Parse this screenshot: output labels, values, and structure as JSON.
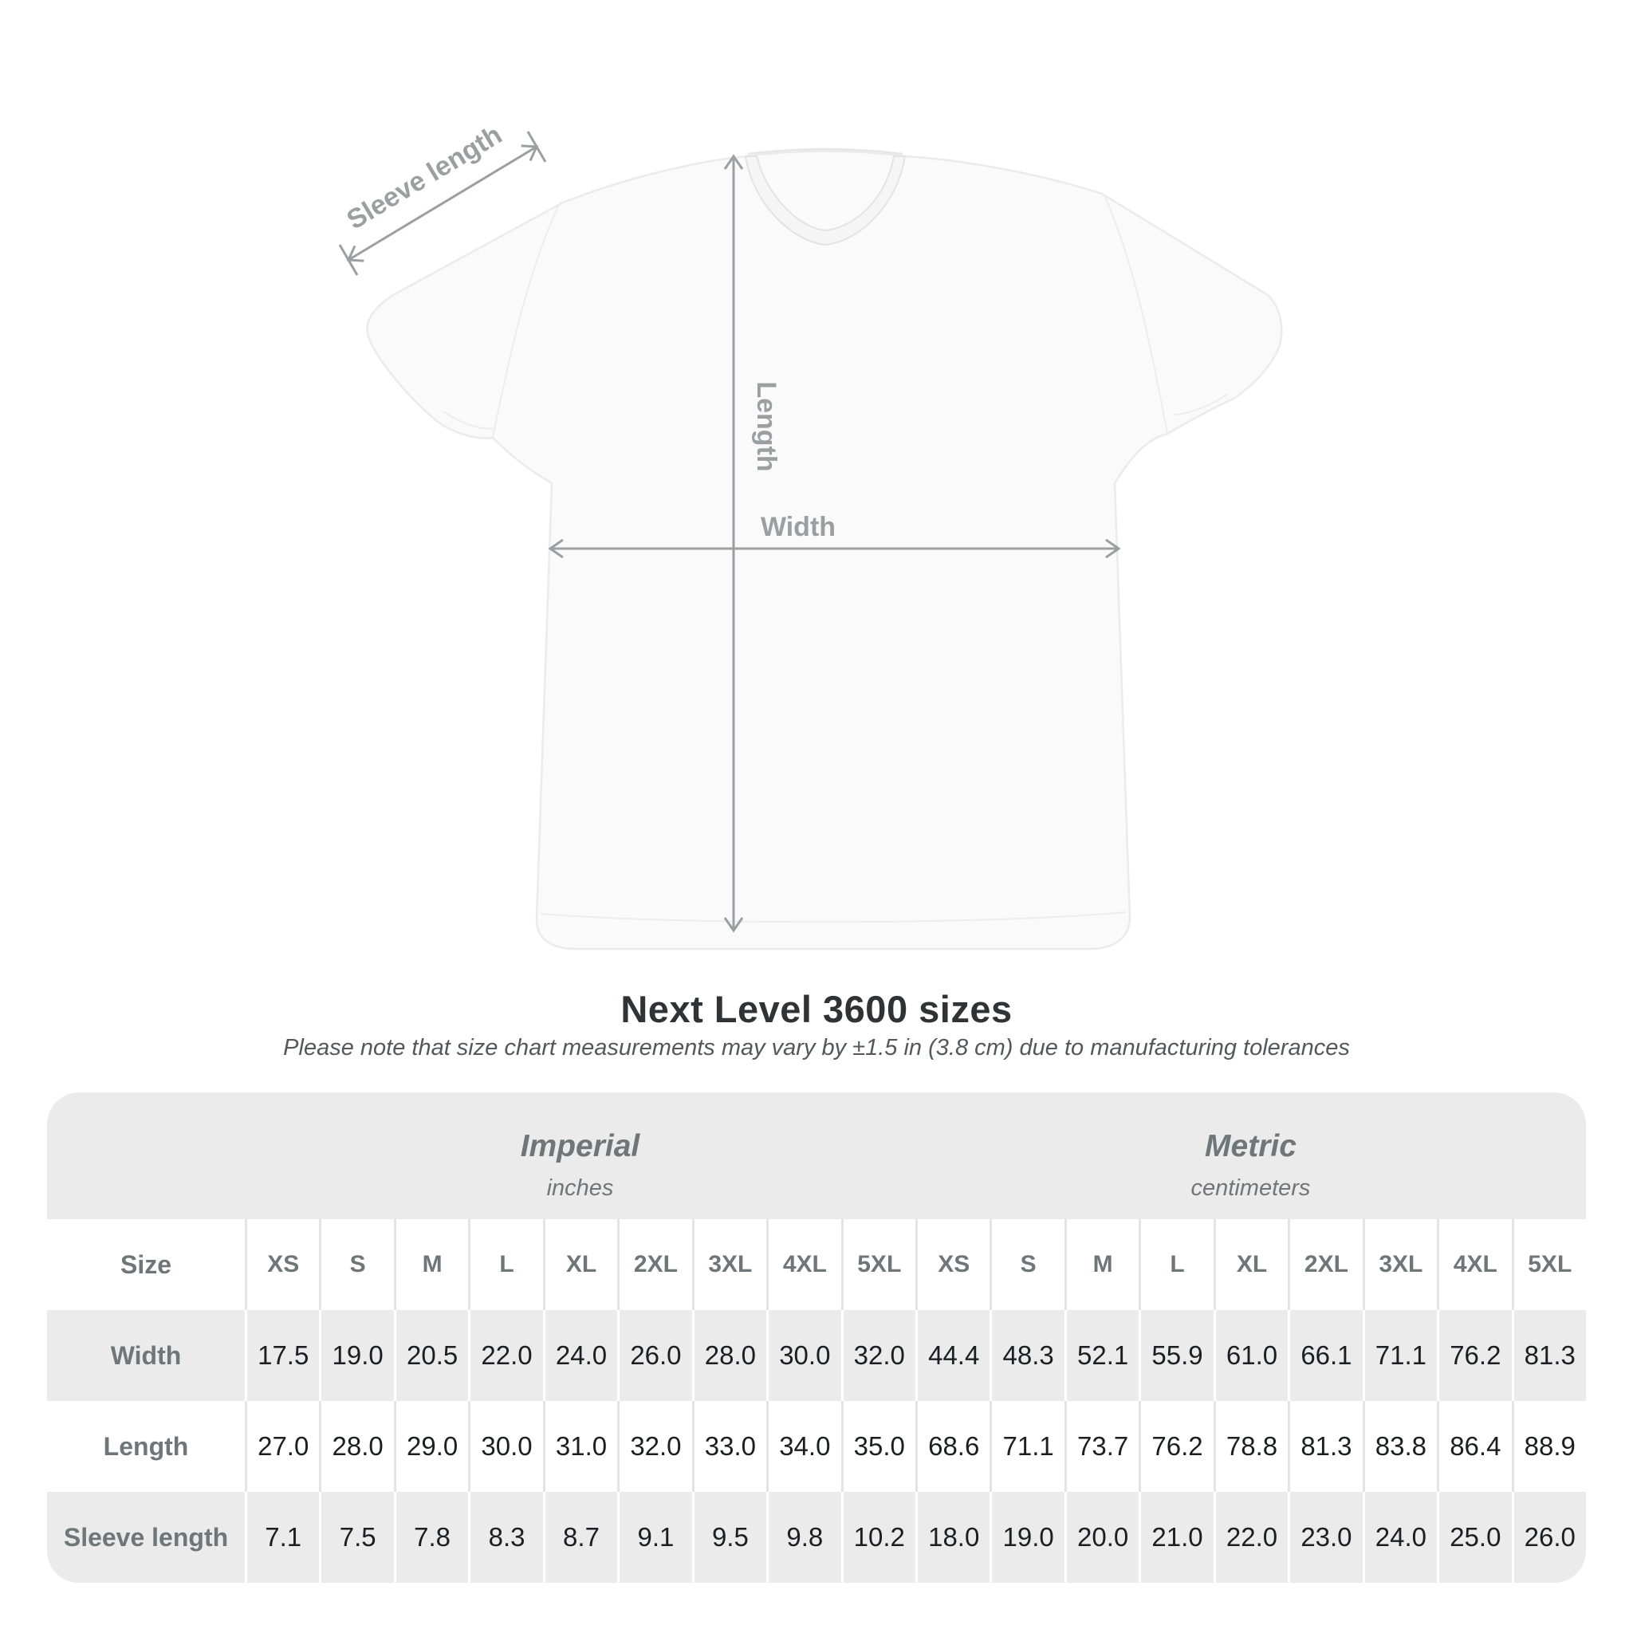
{
  "page": {
    "background": "#ffffff"
  },
  "diagram": {
    "sleeve_label": "Sleeve length",
    "length_label": "Length",
    "width_label": "Width",
    "annotation_color": "#9aa0a2",
    "shirt_fill": "#fafafa",
    "shirt_edge": "#ebebec"
  },
  "heading": {
    "title": "Next Level 3600 sizes",
    "note": "Please note that size chart measurements may vary by ±1.5 in (3.8 cm) due to manufacturing tolerances"
  },
  "table": {
    "row_header_label": "Size",
    "sections": [
      {
        "name": "Imperial",
        "unit": "inches"
      },
      {
        "name": "Metric",
        "unit": "centimeters"
      }
    ],
    "sizes": [
      "XS",
      "S",
      "M",
      "L",
      "XL",
      "2XL",
      "3XL",
      "4XL",
      "5XL"
    ],
    "rows": [
      {
        "label": "Width",
        "imperial": [
          "17.5",
          "19.0",
          "20.5",
          "22.0",
          "24.0",
          "26.0",
          "28.0",
          "30.0",
          "32.0"
        ],
        "metric": [
          "44.4",
          "48.3",
          "52.1",
          "55.9",
          "61.0",
          "66.1",
          "71.1",
          "76.2",
          "81.3"
        ]
      },
      {
        "label": "Length",
        "imperial": [
          "27.0",
          "28.0",
          "29.0",
          "30.0",
          "31.0",
          "32.0",
          "33.0",
          "34.0",
          "35.0"
        ],
        "metric": [
          "68.6",
          "71.1",
          "73.7",
          "76.2",
          "78.8",
          "81.3",
          "83.8",
          "86.4",
          "88.9"
        ]
      },
      {
        "label": "Sleeve length",
        "imperial": [
          "7.1",
          "7.5",
          "7.8",
          "8.3",
          "8.7",
          "9.1",
          "9.5",
          "9.8",
          "10.2"
        ],
        "metric": [
          "18.0",
          "19.0",
          "20.0",
          "21.0",
          "22.0",
          "23.0",
          "24.0",
          "25.0",
          "26.0"
        ]
      }
    ],
    "colors": {
      "band_bg": "#ebebec",
      "gray_row_bg": "#ebebec",
      "white_row_bg": "#ffffff",
      "separator_on_white": "#e4e4e5",
      "separator_on_gray": "#ffffff",
      "header_text": "#6e767a",
      "value_text": "#1c1e1f"
    }
  },
  "chart_data": {
    "type": "table",
    "title": "Next Level 3600 sizes",
    "sections": [
      {
        "name": "Imperial",
        "unit": "inches",
        "sizes": [
          "XS",
          "S",
          "M",
          "L",
          "XL",
          "2XL",
          "3XL",
          "4XL",
          "5XL"
        ],
        "rows": {
          "Width": [
            17.5,
            19.0,
            20.5,
            22.0,
            24.0,
            26.0,
            28.0,
            30.0,
            32.0
          ],
          "Length": [
            27.0,
            28.0,
            29.0,
            30.0,
            31.0,
            32.0,
            33.0,
            34.0,
            35.0
          ],
          "Sleeve length": [
            7.1,
            7.5,
            7.8,
            8.3,
            8.7,
            9.1,
            9.5,
            9.8,
            10.2
          ]
        }
      },
      {
        "name": "Metric",
        "unit": "centimeters",
        "sizes": [
          "XS",
          "S",
          "M",
          "L",
          "XL",
          "2XL",
          "3XL",
          "4XL",
          "5XL"
        ],
        "rows": {
          "Width": [
            44.4,
            48.3,
            52.1,
            55.9,
            61.0,
            66.1,
            71.1,
            76.2,
            81.3
          ],
          "Length": [
            68.6,
            71.1,
            73.7,
            76.2,
            78.8,
            81.3,
            83.8,
            86.4,
            88.9
          ],
          "Sleeve length": [
            18.0,
            19.0,
            20.0,
            21.0,
            22.0,
            23.0,
            24.0,
            25.0,
            26.0
          ]
        }
      }
    ]
  }
}
